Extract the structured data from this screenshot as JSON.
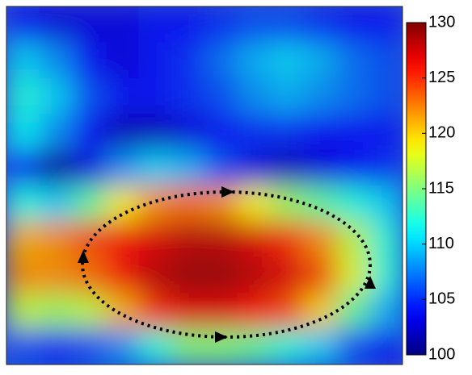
{
  "chart_data": {
    "type": "heatmap",
    "colormap": "jet",
    "z": [
      [
        104,
        103,
        103,
        103,
        104,
        104,
        105,
        106,
        106,
        105,
        104,
        104
      ],
      [
        110,
        108,
        104,
        103,
        104,
        105,
        107,
        109,
        110,
        109,
        107,
        106
      ],
      [
        112,
        110,
        106,
        104,
        104,
        105,
        106,
        108,
        109,
        108,
        107,
        106
      ],
      [
        111,
        108,
        104,
        102,
        102,
        103,
        104,
        105,
        105,
        104,
        104,
        104
      ],
      [
        105,
        101,
        103,
        108,
        110,
        109,
        106,
        103,
        102,
        103,
        104,
        105
      ],
      [
        112,
        110,
        114,
        119,
        122,
        123,
        122,
        119,
        116,
        114,
        112,
        110
      ],
      [
        121,
        122,
        124,
        126,
        127,
        128,
        128,
        127,
        125,
        122,
        117,
        112
      ],
      [
        122,
        122,
        123,
        126,
        128,
        129,
        129,
        128,
        127,
        124,
        118,
        112
      ],
      [
        117,
        116,
        117,
        121,
        125,
        127,
        127,
        126,
        124,
        120,
        114,
        109
      ],
      [
        106,
        105,
        106,
        108,
        112,
        115,
        115,
        114,
        112,
        110,
        106,
        104
      ]
    ],
    "clim": [
      100,
      130
    ],
    "cticks": [
      100,
      105,
      110,
      115,
      120,
      125,
      130
    ]
  }
}
